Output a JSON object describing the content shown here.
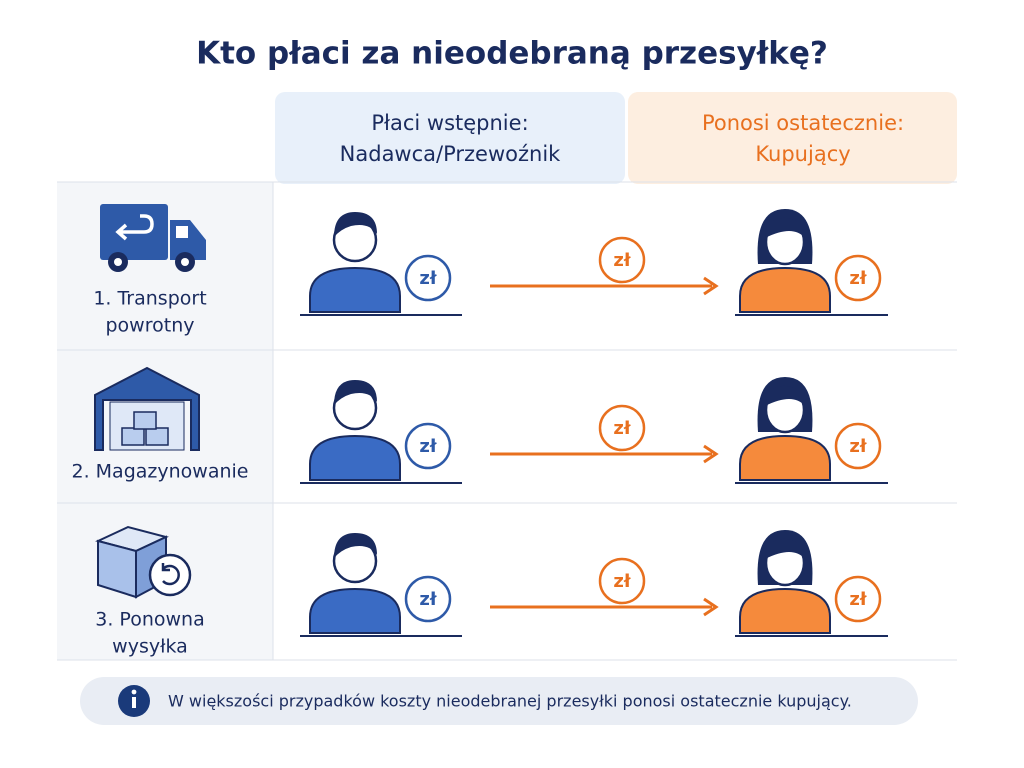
{
  "title": "Kto płaci za nieodebraną przesyłkę?",
  "columns": [
    {
      "label": "Płaci wstępnie:",
      "sublabel": "Nadawca/Przewoźnik"
    },
    {
      "label": "Ponosi ostatecznie:",
      "sublabel": "Kupujący"
    }
  ],
  "rows": [
    {
      "lines": [
        "1. Transport",
        "powrotny"
      ],
      "payer_coin": "zł",
      "transfer_coin": "zł",
      "buyer_coin": "zł"
    },
    {
      "lines": [
        "2. Magazynowanie"
      ],
      "payer_coin": "zł",
      "transfer_coin": "zł",
      "buyer_coin": "zł"
    },
    {
      "lines": [
        "3. Ponowna",
        "wysyłka"
      ],
      "payer_coin": "zł",
      "transfer_coin": "zł",
      "buyer_coin": "zł"
    }
  ],
  "note": "W większości przypadków koszty nieodebranej przesyłki ponosi ostatecznie kupujący."
}
